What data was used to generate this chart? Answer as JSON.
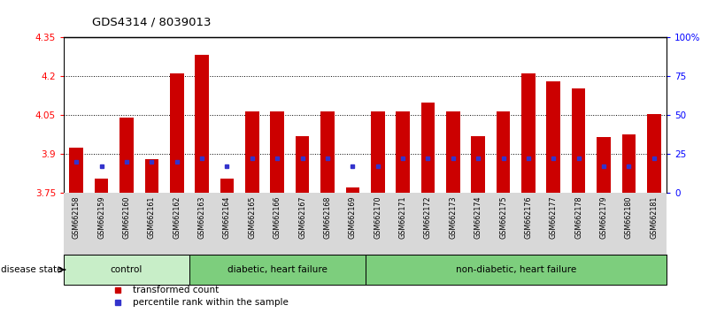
{
  "title": "GDS4314 / 8039013",
  "samples": [
    "GSM662158",
    "GSM662159",
    "GSM662160",
    "GSM662161",
    "GSM662162",
    "GSM662163",
    "GSM662164",
    "GSM662165",
    "GSM662166",
    "GSM662167",
    "GSM662168",
    "GSM662169",
    "GSM662170",
    "GSM662171",
    "GSM662172",
    "GSM662173",
    "GSM662174",
    "GSM662175",
    "GSM662176",
    "GSM662177",
    "GSM662178",
    "GSM662179",
    "GSM662180",
    "GSM662181"
  ],
  "red_values": [
    3.925,
    3.805,
    4.04,
    3.88,
    4.21,
    4.285,
    3.805,
    4.065,
    4.065,
    3.97,
    4.065,
    3.77,
    4.065,
    4.065,
    4.1,
    4.065,
    3.97,
    4.065,
    4.21,
    4.18,
    4.155,
    3.965,
    3.975,
    4.055
  ],
  "blue_percentiles": [
    20,
    17,
    20,
    20,
    20,
    22,
    17,
    22,
    22,
    22,
    22,
    17,
    17,
    22,
    22,
    22,
    22,
    22,
    22,
    22,
    22,
    17,
    17,
    22
  ],
  "ylim_left": [
    3.75,
    4.35
  ],
  "ylim_right": [
    0,
    100
  ],
  "yticks_left": [
    3.75,
    3.9,
    4.05,
    4.2,
    4.35
  ],
  "yticks_right": [
    0,
    25,
    50,
    75,
    100
  ],
  "ytick_labels_right": [
    "0",
    "25",
    "50",
    "75",
    "100%"
  ],
  "bar_color": "#cc0000",
  "blue_color": "#3333cc",
  "base_value": 3.75,
  "group_defs": [
    {
      "label": "control",
      "start": 0,
      "end": 4,
      "color": "#c8eec8"
    },
    {
      "label": "diabetic, heart failure",
      "start": 5,
      "end": 11,
      "color": "#7dce7d"
    },
    {
      "label": "non-diabetic, heart failure",
      "start": 12,
      "end": 23,
      "color": "#7dce7d"
    }
  ]
}
